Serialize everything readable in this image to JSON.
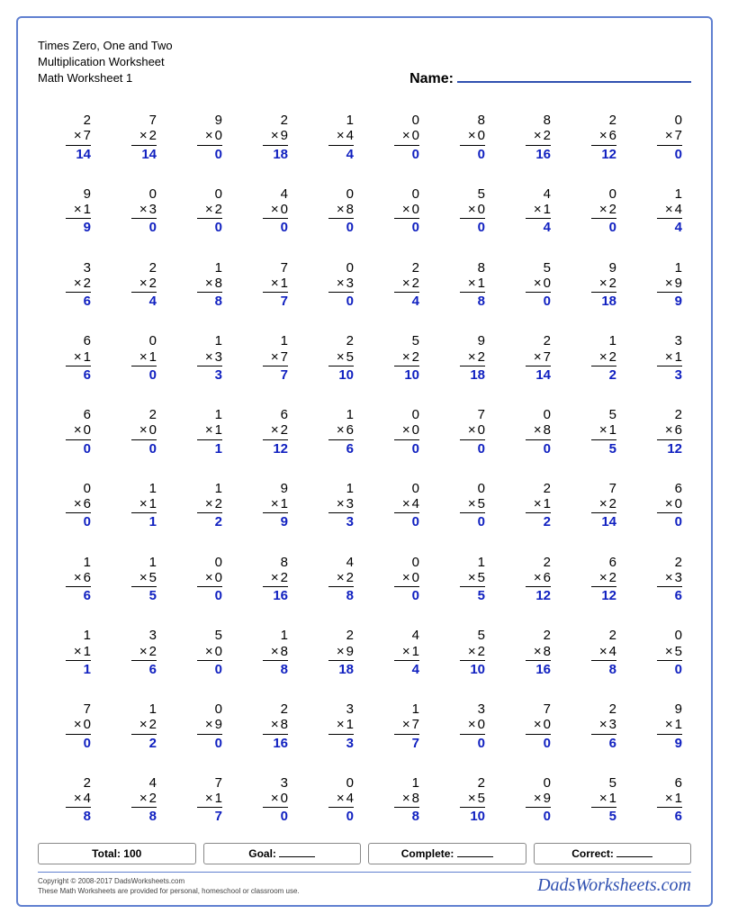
{
  "header": {
    "title1": "Times Zero, One and Two",
    "title2": "Multiplication Worksheet",
    "title3": "Math Worksheet 1",
    "name_label": "Name:"
  },
  "styling": {
    "answer_color": "#1020c0",
    "text_color": "#000000",
    "border_color": "#6080d0",
    "font_size_problem": 15,
    "columns": 10,
    "rows": 10
  },
  "operator": "×",
  "problems": [
    [
      [
        2,
        7,
        14
      ],
      [
        7,
        2,
        14
      ],
      [
        9,
        0,
        0
      ],
      [
        2,
        9,
        18
      ],
      [
        1,
        4,
        4
      ],
      [
        0,
        0,
        0
      ],
      [
        8,
        0,
        0
      ],
      [
        8,
        2,
        16
      ],
      [
        2,
        6,
        12
      ],
      [
        0,
        7,
        0
      ]
    ],
    [
      [
        9,
        1,
        9
      ],
      [
        0,
        3,
        0
      ],
      [
        0,
        2,
        0
      ],
      [
        4,
        0,
        0
      ],
      [
        0,
        8,
        0
      ],
      [
        0,
        0,
        0
      ],
      [
        5,
        0,
        0
      ],
      [
        4,
        1,
        4
      ],
      [
        0,
        2,
        0
      ],
      [
        1,
        4,
        4
      ]
    ],
    [
      [
        3,
        2,
        6
      ],
      [
        2,
        2,
        4
      ],
      [
        1,
        8,
        8
      ],
      [
        7,
        1,
        7
      ],
      [
        0,
        3,
        0
      ],
      [
        2,
        2,
        4
      ],
      [
        8,
        1,
        8
      ],
      [
        5,
        0,
        0
      ],
      [
        9,
        2,
        18
      ],
      [
        1,
        9,
        9
      ]
    ],
    [
      [
        6,
        1,
        6
      ],
      [
        0,
        1,
        0
      ],
      [
        1,
        3,
        3
      ],
      [
        1,
        7,
        7
      ],
      [
        2,
        5,
        10
      ],
      [
        5,
        2,
        10
      ],
      [
        9,
        2,
        18
      ],
      [
        2,
        7,
        14
      ],
      [
        1,
        2,
        2
      ],
      [
        3,
        1,
        3
      ]
    ],
    [
      [
        6,
        0,
        0
      ],
      [
        2,
        0,
        0
      ],
      [
        1,
        1,
        1
      ],
      [
        6,
        2,
        12
      ],
      [
        1,
        6,
        6
      ],
      [
        0,
        0,
        0
      ],
      [
        7,
        0,
        0
      ],
      [
        0,
        8,
        0
      ],
      [
        5,
        1,
        5
      ],
      [
        2,
        6,
        12
      ]
    ],
    [
      [
        0,
        6,
        0
      ],
      [
        1,
        1,
        1
      ],
      [
        1,
        2,
        2
      ],
      [
        9,
        1,
        9
      ],
      [
        1,
        3,
        3
      ],
      [
        0,
        4,
        0
      ],
      [
        0,
        5,
        0
      ],
      [
        2,
        1,
        2
      ],
      [
        7,
        2,
        14
      ],
      [
        6,
        0,
        0
      ]
    ],
    [
      [
        1,
        6,
        6
      ],
      [
        1,
        5,
        5
      ],
      [
        0,
        0,
        0
      ],
      [
        8,
        2,
        16
      ],
      [
        4,
        2,
        8
      ],
      [
        0,
        0,
        0
      ],
      [
        1,
        5,
        5
      ],
      [
        2,
        6,
        12
      ],
      [
        6,
        2,
        12
      ],
      [
        2,
        3,
        6
      ]
    ],
    [
      [
        1,
        1,
        1
      ],
      [
        3,
        2,
        6
      ],
      [
        5,
        0,
        0
      ],
      [
        1,
        8,
        8
      ],
      [
        2,
        9,
        18
      ],
      [
        4,
        1,
        4
      ],
      [
        5,
        2,
        10
      ],
      [
        2,
        8,
        16
      ],
      [
        2,
        4,
        8
      ],
      [
        0,
        5,
        0
      ]
    ],
    [
      [
        7,
        0,
        0
      ],
      [
        1,
        2,
        2
      ],
      [
        0,
        9,
        0
      ],
      [
        2,
        8,
        16
      ],
      [
        3,
        1,
        3
      ],
      [
        1,
        7,
        7
      ],
      [
        3,
        0,
        0
      ],
      [
        7,
        0,
        0
      ],
      [
        2,
        3,
        6
      ],
      [
        9,
        1,
        9
      ]
    ],
    [
      [
        2,
        4,
        8
      ],
      [
        4,
        2,
        8
      ],
      [
        7,
        1,
        7
      ],
      [
        3,
        0,
        0
      ],
      [
        0,
        4,
        0
      ],
      [
        1,
        8,
        8
      ],
      [
        2,
        5,
        10
      ],
      [
        0,
        9,
        0
      ],
      [
        5,
        1,
        5
      ],
      [
        6,
        1,
        6
      ]
    ]
  ],
  "footer": {
    "total_label": "Total:",
    "total_value": "100",
    "goal_label": "Goal:",
    "complete_label": "Complete:",
    "correct_label": "Correct:"
  },
  "copyright": {
    "line1": "Copyright © 2008-2017 DadsWorksheets.com",
    "line2": "These Math Worksheets are provided for personal, homeschool or classroom use.",
    "brand": "DadsWorksheets.com"
  }
}
